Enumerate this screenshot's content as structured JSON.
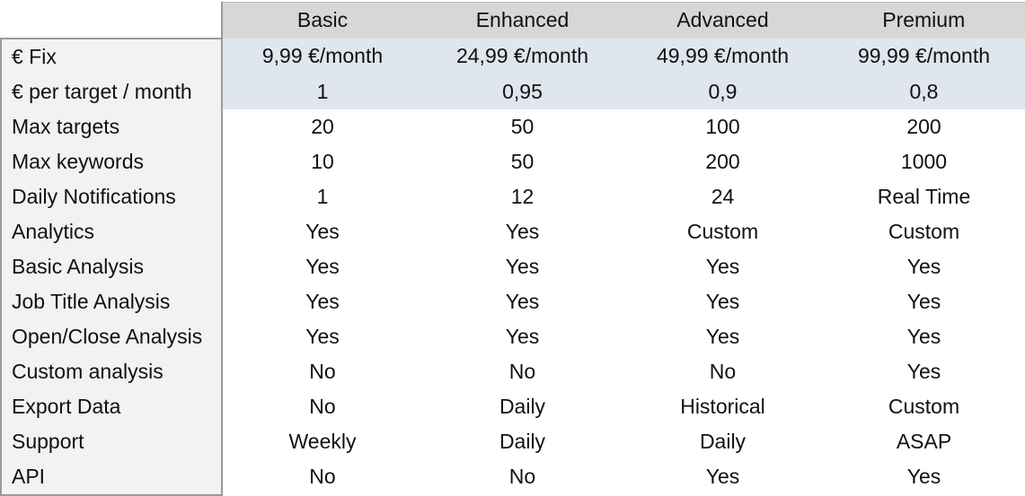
{
  "table": {
    "plans": [
      "Basic",
      "Enhanced",
      "Advanced",
      "Premium"
    ],
    "rows": [
      {
        "label": "€ Fix",
        "values": [
          "9,99 €/month",
          "24,99 €/month",
          "49,99 €/month",
          "99,99 €/month"
        ],
        "highlight": true
      },
      {
        "label": "€ per target / month",
        "values": [
          "1",
          "0,95",
          "0,9",
          "0,8"
        ],
        "highlight": true
      },
      {
        "label": "Max targets",
        "values": [
          "20",
          "50",
          "100",
          "200"
        ]
      },
      {
        "label": "Max keywords",
        "values": [
          "10",
          "50",
          "200",
          "1000"
        ]
      },
      {
        "label": "Daily Notifications",
        "values": [
          "1",
          "12",
          "24",
          "Real Time"
        ]
      },
      {
        "label": "Analytics",
        "values": [
          "Yes",
          "Yes",
          "Custom",
          "Custom"
        ]
      },
      {
        "label": "Basic Analysis",
        "values": [
          "Yes",
          "Yes",
          "Yes",
          "Yes"
        ]
      },
      {
        "label": "Job Title Analysis",
        "values": [
          "Yes",
          "Yes",
          "Yes",
          "Yes"
        ]
      },
      {
        "label": "Open/Close Analysis",
        "values": [
          "Yes",
          "Yes",
          "Yes",
          "Yes"
        ]
      },
      {
        "label": "Custom analysis",
        "values": [
          "No",
          "No",
          "No",
          "Yes"
        ]
      },
      {
        "label": "Export Data",
        "values": [
          "No",
          "Daily",
          "Historical",
          "Custom"
        ]
      },
      {
        "label": "Support",
        "values": [
          "Weekly",
          "Daily",
          "Daily",
          "ASAP"
        ]
      },
      {
        "label": "API",
        "values": [
          "No",
          "No",
          "Yes",
          "Yes"
        ]
      }
    ]
  },
  "colors": {
    "header_bg": "#d7d7d7",
    "label_bg": "#f2f2f2",
    "price_row_bg": "#dfe6ee",
    "border": "#9a9a9a"
  }
}
